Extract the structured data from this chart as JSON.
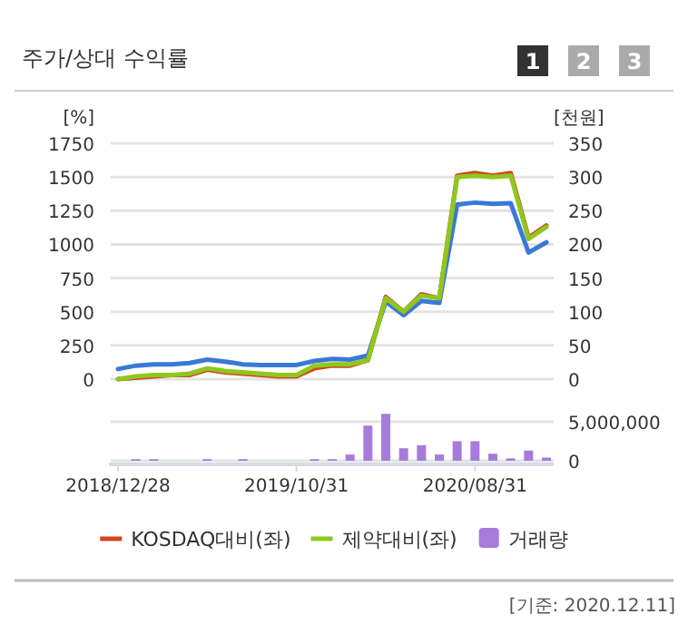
{
  "chart_data": [
    {
      "type": "line",
      "title": "주가/상대 수익률",
      "annotations": [
        "1",
        "2",
        "3"
      ],
      "ylabel": "[%]",
      "y2label": "[천원]",
      "categories": [
        null,
        null,
        null,
        null,
        null,
        null,
        null,
        null,
        null,
        null,
        null,
        null,
        null,
        null,
        null,
        null,
        null,
        null,
        null,
        null,
        null,
        null,
        null,
        null,
        null
      ],
      "series": [
        {
          "color": "#3a78d8",
          "axis": "y2",
          "values": [
            15,
            20,
            22,
            22,
            24,
            29,
            26,
            22,
            21,
            21,
            21,
            27,
            30,
            29,
            35,
            115,
            95,
            116,
            113,
            259,
            262,
            260,
            261,
            188,
            203
          ]
        },
        {
          "name": "KOSDAQ대비(좌)",
          "color": "#d4461e",
          "values": [
            0,
            10,
            20,
            30,
            30,
            70,
            50,
            40,
            30,
            20,
            20,
            80,
            100,
            100,
            140,
            610,
            500,
            630,
            600,
            1510,
            1530,
            1510,
            1530,
            1050,
            1140
          ]
        },
        {
          "name": "제약대비(좌)",
          "color": "#8ec81e",
          "values": [
            0,
            20,
            30,
            30,
            40,
            80,
            60,
            50,
            40,
            30,
            30,
            100,
            110,
            110,
            140,
            600,
            500,
            620,
            600,
            1500,
            1510,
            1500,
            1510,
            1040,
            1130
          ]
        }
      ],
      "ylim": [
        0,
        1750
      ],
      "yticks": [
        0,
        250,
        500,
        750,
        1000,
        1250,
        1500,
        1750
      ],
      "y2lim": [
        0,
        350
      ],
      "y2ticks": [
        0,
        50,
        100,
        150,
        200,
        250,
        300,
        350
      ],
      "grid": "y",
      "legend": "bottom",
      "tick_labels": "y"
    },
    {
      "type": "bar",
      "annotations": [
        "[기준: 2020.12.11]"
      ],
      "categories": [
        "2018/12/28",
        null,
        null,
        null,
        null,
        null,
        null,
        null,
        null,
        null,
        "2019/10/31",
        null,
        null,
        null,
        null,
        null,
        null,
        null,
        null,
        null,
        "2020/08/31",
        null,
        null,
        null,
        null
      ],
      "series": [
        {
          "name": "거래량",
          "color": "#a77bdb",
          "axis": "y2",
          "values": [
            0,
            200000,
            200000,
            0,
            0,
            200000,
            0,
            200000,
            0,
            0,
            0,
            200000,
            200000,
            800000,
            4500000,
            6000000,
            1600000,
            2000000,
            800000,
            2500000,
            2500000,
            900000,
            300000,
            1300000,
            400000
          ]
        }
      ],
      "y2lim": [
        0,
        6500000
      ],
      "y2ticks": [
        {
          "value": 0,
          "label": "0"
        },
        {
          "value": 5000000,
          "label": "5,000,000"
        }
      ],
      "grid": "y",
      "legend": "bottom"
    }
  ]
}
